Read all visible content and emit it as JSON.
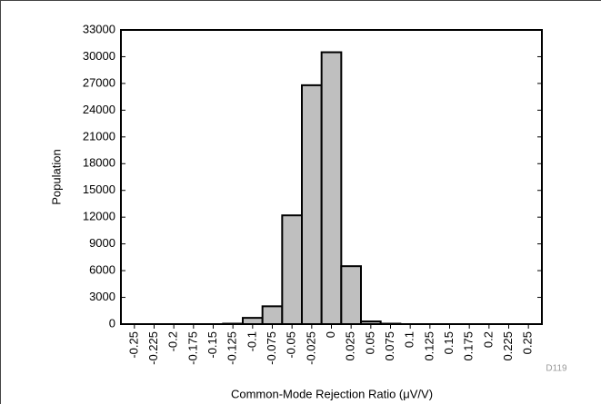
{
  "chart_data": {
    "type": "bar",
    "x_label": "Common-Mode Rejection Ratio (μV/V)",
    "y_label": "Population",
    "note": "D119",
    "categories": [
      "-0.25",
      "-0.225",
      "-0.2",
      "-0.175",
      "-0.15",
      "-0.125",
      "-0.1",
      "-0.075",
      "-0.05",
      "-0.025",
      "0",
      "0.025",
      "0.05",
      "0.075",
      "0.1",
      "0.125",
      "0.15",
      "0.175",
      "0.2",
      "0.225",
      "0.25"
    ],
    "values": [
      0,
      0,
      0,
      0,
      0,
      50,
      700,
      2000,
      12200,
      26800,
      30500,
      6500,
      300,
      50,
      0,
      0,
      0,
      0,
      0,
      0,
      0
    ],
    "color": "#bfbfbf",
    "ylim": [
      0,
      33000
    ],
    "yticks": [
      0,
      3000,
      6000,
      9000,
      12000,
      15000,
      18000,
      21000,
      24000,
      27000,
      30000,
      33000
    ],
    "grid": false
  }
}
